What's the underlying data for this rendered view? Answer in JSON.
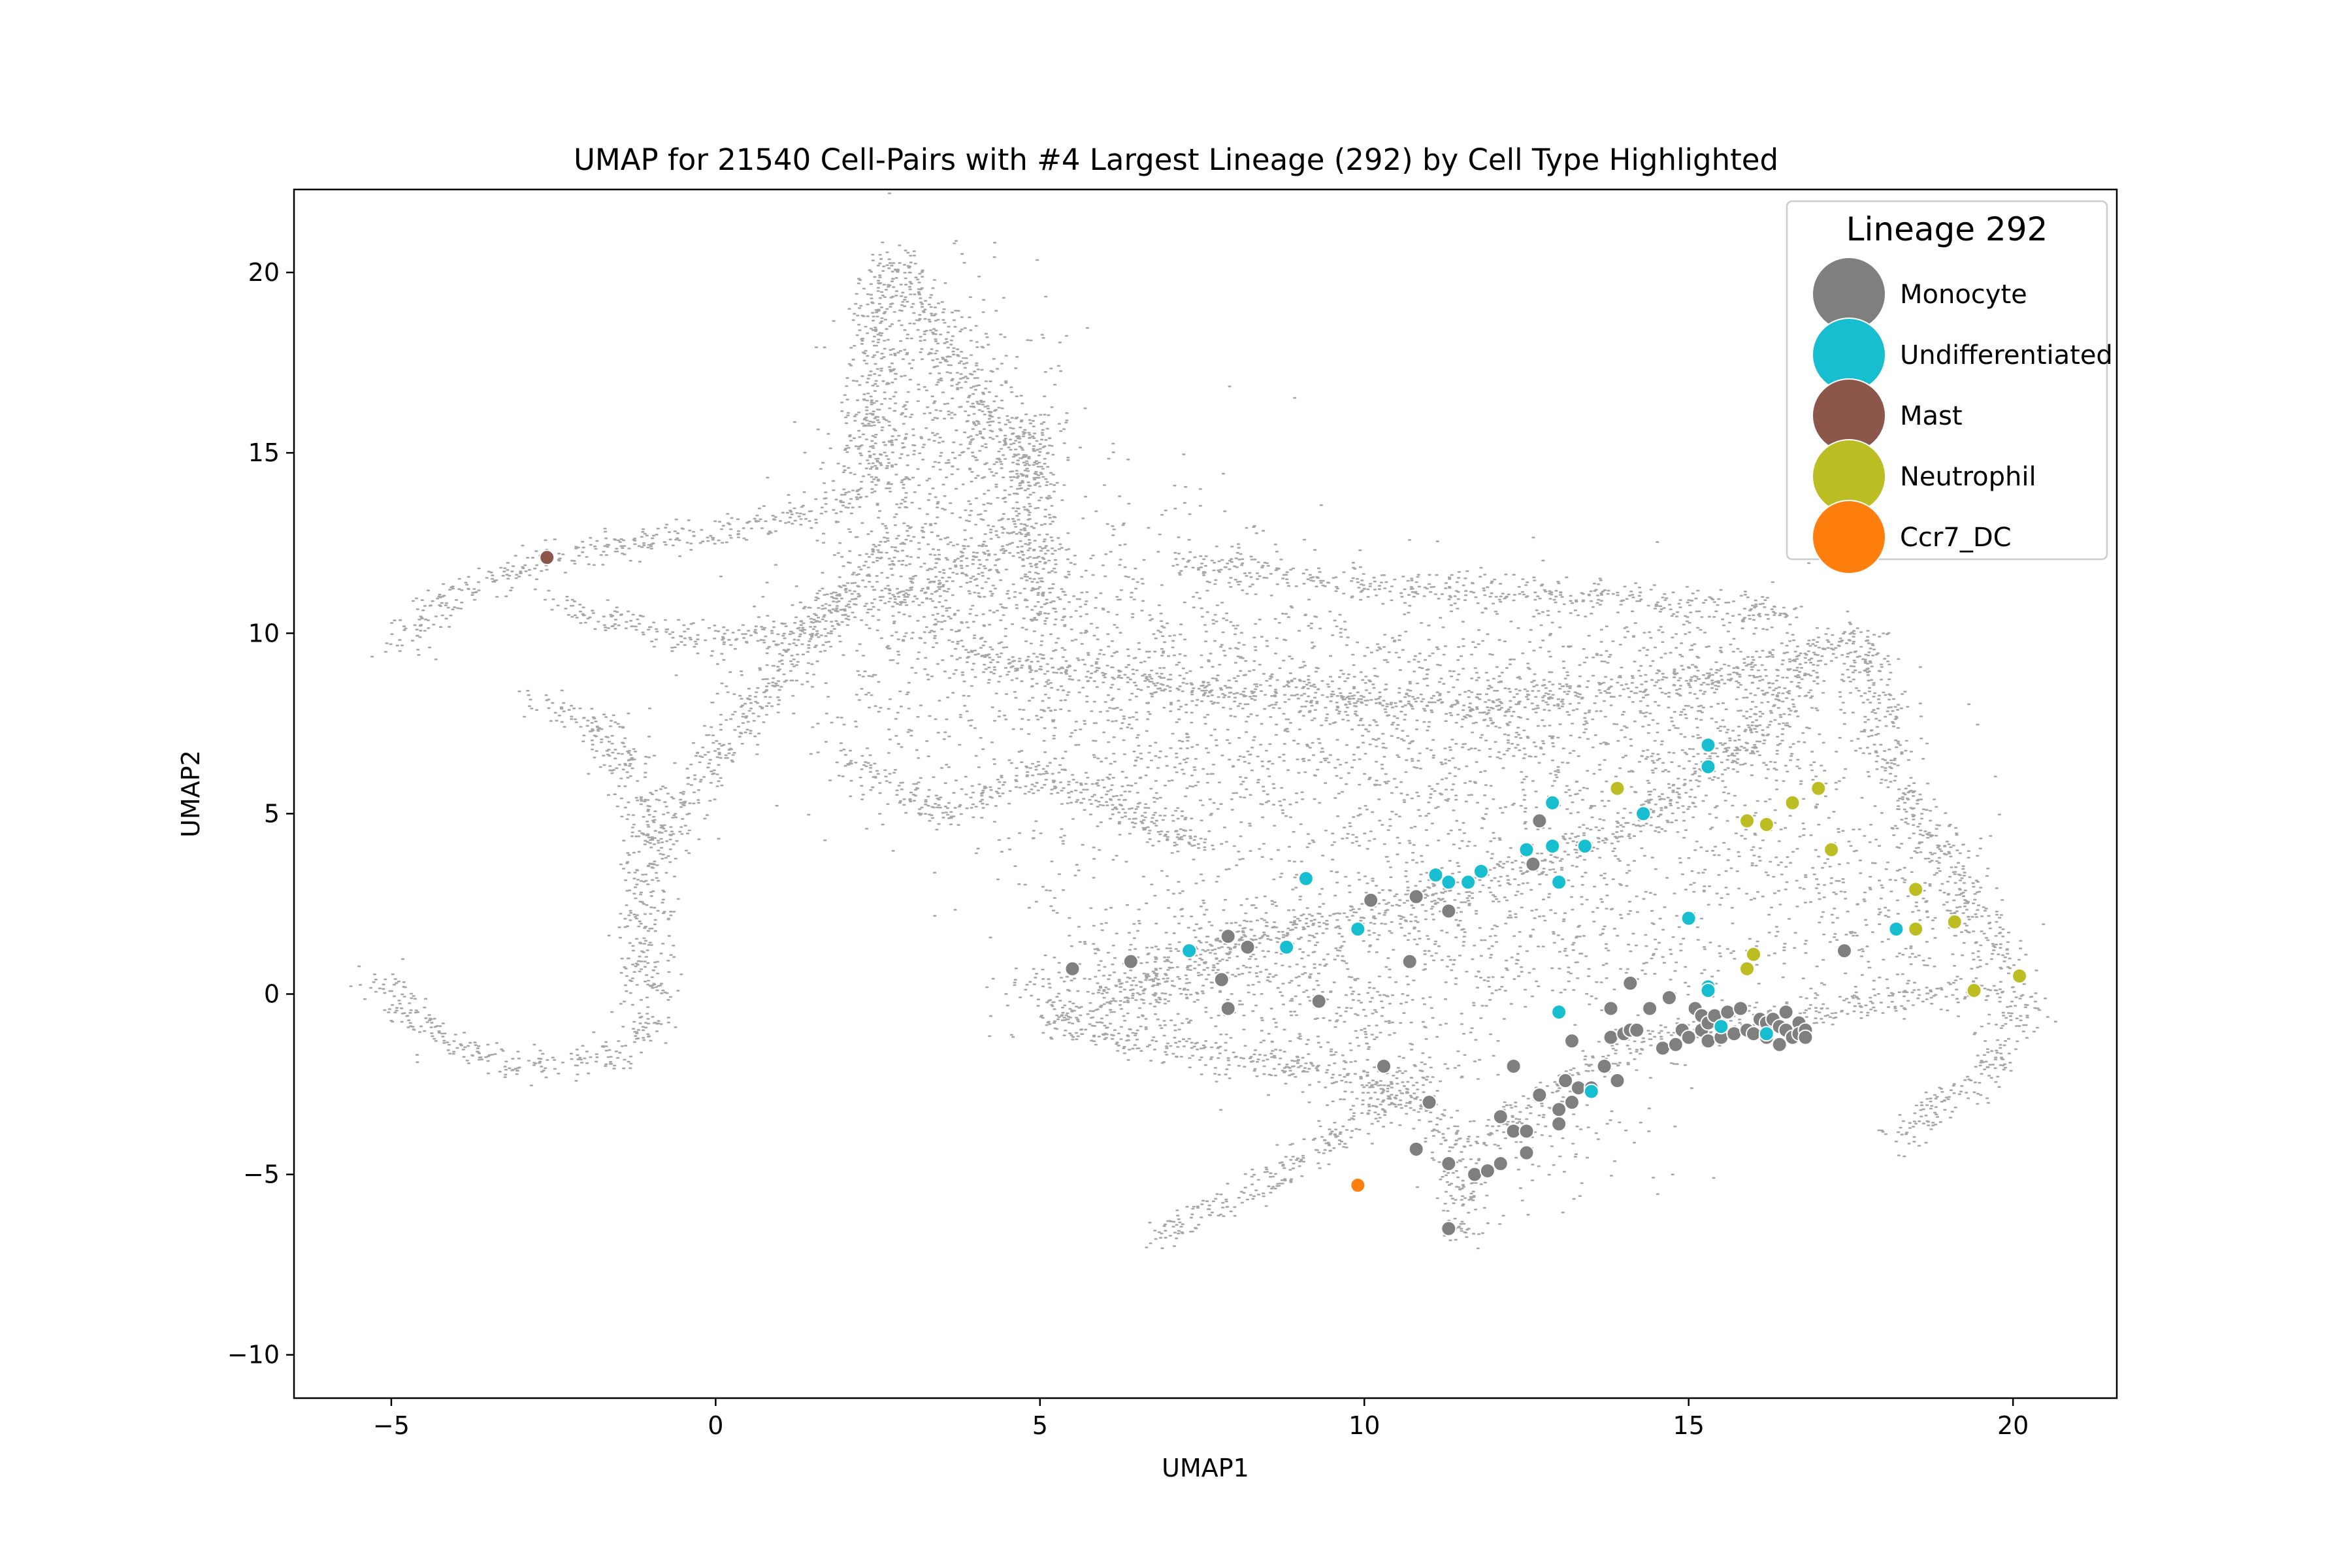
{
  "chart_data": {
    "type": "scatter",
    "title": "UMAP for 21540 Cell-Pairs with #4 Largest Lineage (292) by Cell Type Highlighted",
    "xlabel": "UMAP1",
    "ylabel": "UMAP2",
    "xlim": [
      -6.5,
      21.6
    ],
    "ylim": [
      -11.2,
      22.3
    ],
    "x_ticks": [
      -5,
      0,
      5,
      10,
      15,
      20
    ],
    "y_ticks": [
      -10,
      -5,
      0,
      5,
      10,
      15,
      20
    ],
    "grid": false,
    "legend": {
      "title": "Lineage 292",
      "position": "top-right"
    },
    "background": {
      "color": "#a6a6a6"
    },
    "series": [
      {
        "name": "Monocyte",
        "color": "#7f7f7f",
        "points": [
          [
            5.5,
            0.7
          ],
          [
            6.4,
            0.9
          ],
          [
            7.8,
            0.4
          ],
          [
            7.9,
            1.6
          ],
          [
            7.9,
            -0.4
          ],
          [
            8.2,
            1.3
          ],
          [
            9.3,
            -0.2
          ],
          [
            10.1,
            2.6
          ],
          [
            10.3,
            -2.0
          ],
          [
            10.7,
            0.9
          ],
          [
            10.8,
            2.7
          ],
          [
            10.8,
            -4.3
          ],
          [
            11.0,
            -3.0
          ],
          [
            11.3,
            2.3
          ],
          [
            11.3,
            -4.7
          ],
          [
            11.3,
            -6.5
          ],
          [
            11.7,
            -5.0
          ],
          [
            11.9,
            -4.9
          ],
          [
            12.1,
            -4.7
          ],
          [
            12.1,
            -3.4
          ],
          [
            12.3,
            -3.8
          ],
          [
            12.3,
            -2.0
          ],
          [
            12.5,
            -3.8
          ],
          [
            12.5,
            -4.4
          ],
          [
            12.6,
            3.6
          ],
          [
            12.7,
            4.8
          ],
          [
            12.7,
            -2.8
          ],
          [
            13.0,
            -3.2
          ],
          [
            13.0,
            -3.6
          ],
          [
            13.1,
            -2.4
          ],
          [
            13.2,
            -3.0
          ],
          [
            13.2,
            -1.3
          ],
          [
            13.3,
            -2.6
          ],
          [
            13.5,
            -2.6
          ],
          [
            13.7,
            -2.0
          ],
          [
            13.8,
            -0.4
          ],
          [
            13.8,
            -1.2
          ],
          [
            13.9,
            -2.4
          ],
          [
            14.0,
            -1.1
          ],
          [
            14.1,
            -1.0
          ],
          [
            14.1,
            0.3
          ],
          [
            14.2,
            -1.0
          ],
          [
            14.4,
            -0.4
          ],
          [
            14.6,
            -1.5
          ],
          [
            14.7,
            -0.1
          ],
          [
            14.8,
            -1.4
          ],
          [
            14.9,
            -1.0
          ],
          [
            15.0,
            -1.2
          ],
          [
            15.1,
            -0.4
          ],
          [
            15.2,
            -0.6
          ],
          [
            15.2,
            -1.0
          ],
          [
            15.3,
            -1.3
          ],
          [
            15.3,
            -0.8
          ],
          [
            15.4,
            -0.6
          ],
          [
            15.5,
            -0.9
          ],
          [
            15.5,
            -1.2
          ],
          [
            15.6,
            -0.5
          ],
          [
            15.7,
            -1.1
          ],
          [
            15.8,
            -0.4
          ],
          [
            15.9,
            -1.0
          ],
          [
            16.0,
            -1.1
          ],
          [
            16.1,
            -0.7
          ],
          [
            16.2,
            -1.2
          ],
          [
            16.2,
            -0.8
          ],
          [
            16.3,
            -0.7
          ],
          [
            16.4,
            -1.4
          ],
          [
            16.4,
            -0.9
          ],
          [
            16.5,
            -0.5
          ],
          [
            16.5,
            -1.0
          ],
          [
            16.6,
            -1.2
          ],
          [
            16.7,
            -0.8
          ],
          [
            16.7,
            -1.1
          ],
          [
            16.8,
            -1.0
          ],
          [
            16.8,
            -1.2
          ],
          [
            17.4,
            1.2
          ]
        ]
      },
      {
        "name": "Undifferentiated",
        "color": "#17becf",
        "points": [
          [
            7.3,
            1.2
          ],
          [
            8.8,
            1.3
          ],
          [
            9.1,
            3.2
          ],
          [
            9.9,
            1.8
          ],
          [
            11.1,
            3.3
          ],
          [
            11.3,
            3.1
          ],
          [
            11.6,
            3.1
          ],
          [
            11.8,
            3.4
          ],
          [
            12.5,
            4.0
          ],
          [
            12.9,
            5.3
          ],
          [
            12.9,
            4.1
          ],
          [
            13.0,
            3.1
          ],
          [
            13.0,
            -0.5
          ],
          [
            13.4,
            4.1
          ],
          [
            13.5,
            -2.7
          ],
          [
            14.3,
            5.0
          ],
          [
            15.0,
            2.1
          ],
          [
            15.3,
            6.9
          ],
          [
            15.3,
            6.3
          ],
          [
            15.3,
            0.2
          ],
          [
            15.3,
            0.1
          ],
          [
            15.5,
            -0.9
          ],
          [
            16.2,
            -1.1
          ],
          [
            18.2,
            1.8
          ]
        ]
      },
      {
        "name": "Mast",
        "color": "#8c564b",
        "points": [
          [
            -2.6,
            12.1
          ]
        ]
      },
      {
        "name": "Neutrophil",
        "color": "#bcbd22",
        "points": [
          [
            13.9,
            5.7
          ],
          [
            15.9,
            4.8
          ],
          [
            15.9,
            0.7
          ],
          [
            16.0,
            1.1
          ],
          [
            16.2,
            4.7
          ],
          [
            16.6,
            5.3
          ],
          [
            17.0,
            5.7
          ],
          [
            17.2,
            4.0
          ],
          [
            18.5,
            2.9
          ],
          [
            18.5,
            1.8
          ],
          [
            19.1,
            2.0
          ],
          [
            19.4,
            0.1
          ],
          [
            20.1,
            0.5
          ]
        ]
      },
      {
        "name": "Ccr7_DC",
        "color": "#ff7f0e",
        "points": [
          [
            9.9,
            -5.3
          ]
        ]
      }
    ]
  }
}
